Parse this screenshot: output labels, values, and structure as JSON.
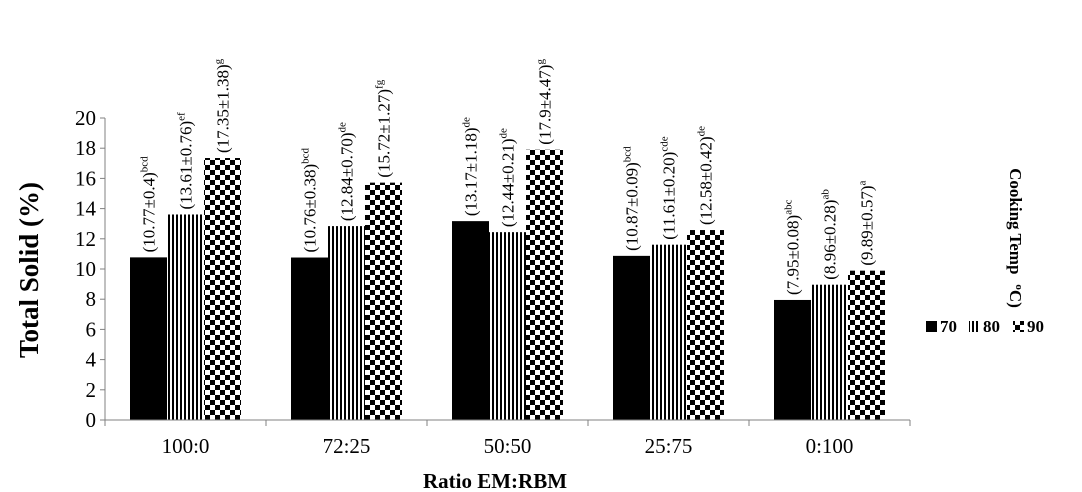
{
  "chart_data": {
    "type": "bar",
    "xlabel": "Ratio EM:RBM",
    "ylabel": "Total Solid  (%)",
    "ylim": [
      0,
      20
    ],
    "yticks": [
      "0",
      "2",
      "4",
      "6",
      "8",
      "10",
      "12",
      "14",
      "16",
      "18",
      "20"
    ],
    "grid": false,
    "legend_position": "right",
    "legend_title": [
      "Cooking Temp",
      "o",
      "C)"
    ],
    "categories": [
      "100:0",
      "72:25",
      "50:50",
      "25:75",
      "0:100"
    ],
    "series": [
      {
        "name": "70",
        "pattern": "solid",
        "values": [
          10.77,
          10.76,
          13.17,
          10.87,
          7.95
        ],
        "labels": [
          "(10.77±0.4)",
          "(10.76±0.38)",
          "(13.17±1.18)",
          "(10.87±0.09)",
          "(7.95±0.08)"
        ],
        "sups": [
          "bcd",
          "bcd",
          "de",
          "bcd",
          "abc"
        ]
      },
      {
        "name": "80",
        "pattern": "vertical-stripes",
        "values": [
          13.61,
          12.84,
          12.44,
          11.61,
          8.96
        ],
        "labels": [
          "(13.61±0.76)",
          "(12.84±0.70)",
          "(12.44±0.21)",
          "(11.61±0.20)",
          "(8.96±0.28)"
        ],
        "sups": [
          "ef",
          "de",
          "de",
          "cde",
          "ab"
        ]
      },
      {
        "name": "90",
        "pattern": "checker",
        "values": [
          17.35,
          15.72,
          17.9,
          12.58,
          9.89
        ],
        "labels": [
          "(17.35±1.38)",
          "(15.72±1.27)",
          "(17.9±4.47)",
          "(12.58±0.42)",
          "(9.89±0.57)"
        ],
        "sups": [
          "g",
          "fg",
          "g",
          "de",
          "a"
        ]
      }
    ]
  }
}
